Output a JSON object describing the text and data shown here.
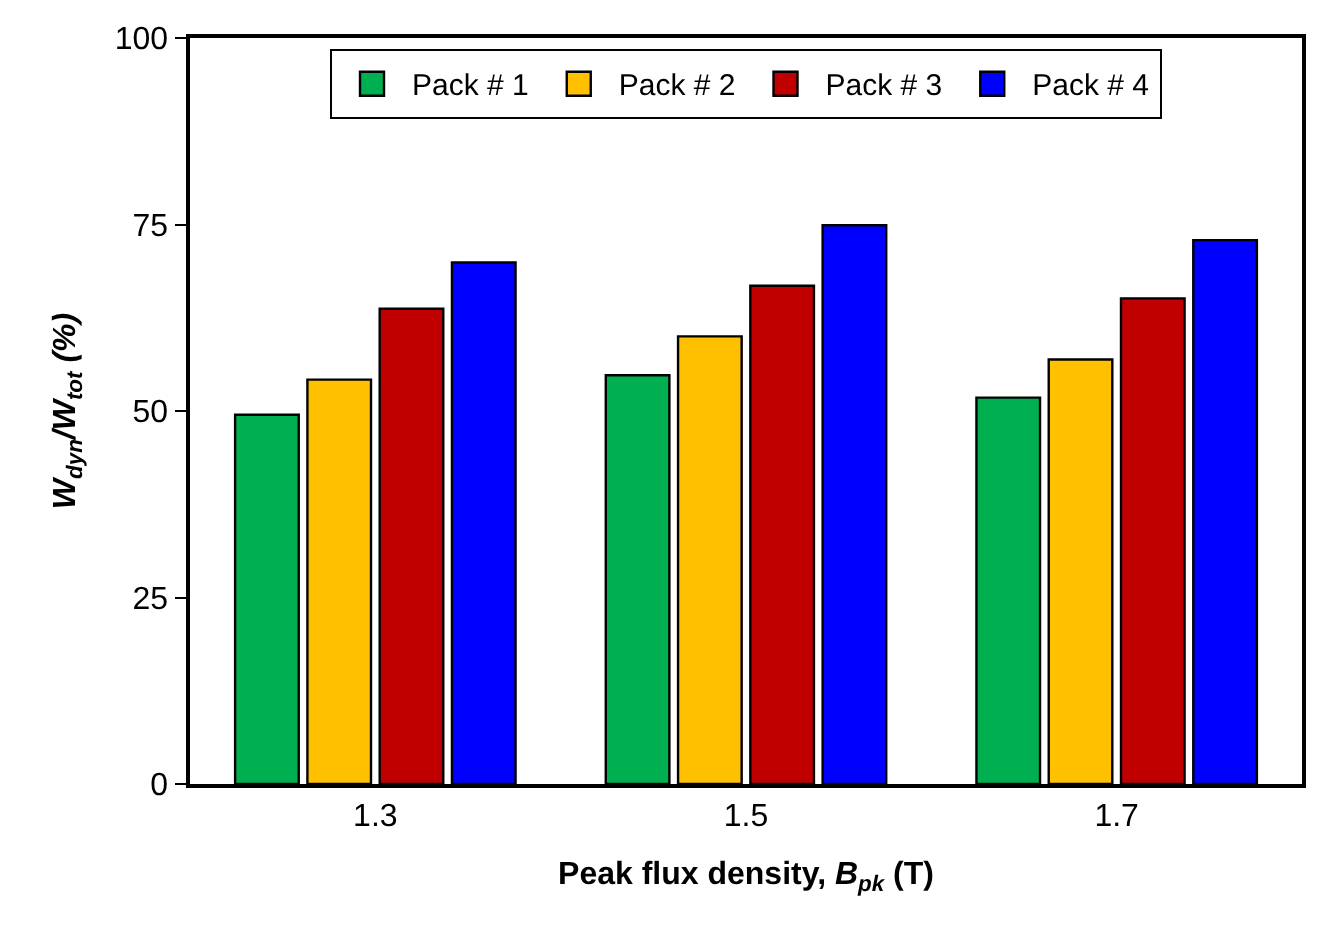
{
  "chart_data": {
    "type": "bar",
    "xlabel": "Peak flux density, B$_{pk}$ (T)",
    "ylabel": "W$_{dyn}$/W$_{tot}$ (%)",
    "categories": [
      "1.3",
      "1.5",
      "1.7"
    ],
    "series": [
      {
        "name": "Pack # 1",
        "color": "#00b050",
        "values": [
          49.5,
          54.8,
          51.8
        ]
      },
      {
        "name": "Pack # 2",
        "color": "#ffc000",
        "values": [
          54.2,
          60.0,
          56.9
        ]
      },
      {
        "name": "Pack # 3",
        "color": "#c00000",
        "values": [
          63.7,
          66.8,
          65.1
        ]
      },
      {
        "name": "Pack # 4",
        "color": "#0000ff",
        "values": [
          69.9,
          74.9,
          72.9
        ]
      }
    ],
    "ylim": [
      0,
      100
    ],
    "yticks": [
      0,
      25,
      50,
      75,
      100
    ],
    "legend": "top"
  }
}
